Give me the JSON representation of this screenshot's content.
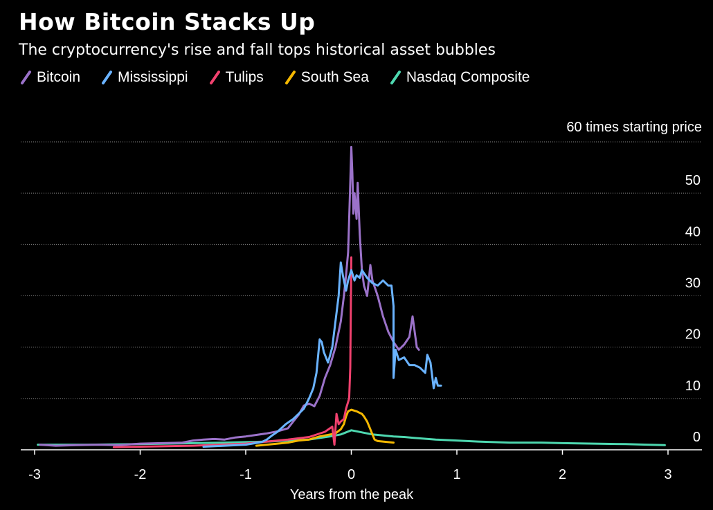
{
  "header": {
    "title": "How Bitcoin Stacks Up",
    "subtitle": "The cryptocurrency's rise and fall tops historical asset bubbles"
  },
  "chart_data": {
    "type": "line",
    "title": "How Bitcoin Stacks Up",
    "subtitle": "The cryptocurrency's rise and fall tops historical asset bubbles",
    "xlabel": "Years from the peak",
    "ylabel": "60 times starting price",
    "xlim": [
      -3,
      3
    ],
    "ylim": [
      0,
      60
    ],
    "xticks": [
      -3,
      -2,
      -1,
      0,
      1,
      2,
      3
    ],
    "yticks": [
      0,
      10,
      20,
      30,
      40,
      50,
      60
    ],
    "ytick_labels": [
      "0",
      "10",
      "20",
      "30",
      "40",
      "50",
      ""
    ],
    "grid": "horizontal dotted",
    "legend_position": "top-left",
    "series": [
      {
        "name": "Bitcoin",
        "color": "#9b72c9",
        "points": [
          [
            -2.95,
            1.0
          ],
          [
            -2.8,
            0.8
          ],
          [
            -2.6,
            0.9
          ],
          [
            -2.4,
            1.0
          ],
          [
            -2.2,
            0.9
          ],
          [
            -2.0,
            1.2
          ],
          [
            -1.8,
            1.3
          ],
          [
            -1.6,
            1.4
          ],
          [
            -1.5,
            1.8
          ],
          [
            -1.4,
            2.0
          ],
          [
            -1.3,
            2.1
          ],
          [
            -1.2,
            2.0
          ],
          [
            -1.1,
            2.4
          ],
          [
            -1.0,
            2.6
          ],
          [
            -0.9,
            2.9
          ],
          [
            -0.8,
            3.2
          ],
          [
            -0.7,
            3.6
          ],
          [
            -0.6,
            4.2
          ],
          [
            -0.55,
            5.5
          ],
          [
            -0.5,
            6.8
          ],
          [
            -0.45,
            8.6
          ],
          [
            -0.4,
            9.0
          ],
          [
            -0.35,
            8.5
          ],
          [
            -0.3,
            10.5
          ],
          [
            -0.25,
            14.0
          ],
          [
            -0.2,
            16.5
          ],
          [
            -0.15,
            20.0
          ],
          [
            -0.1,
            25.0
          ],
          [
            -0.07,
            30.0
          ],
          [
            -0.05,
            34.0
          ],
          [
            -0.03,
            38.5
          ],
          [
            -0.02,
            45.0
          ],
          [
            -0.01,
            52.0
          ],
          [
            0.0,
            59.0
          ],
          [
            0.01,
            54.0
          ],
          [
            0.02,
            46.0
          ],
          [
            0.03,
            50.0
          ],
          [
            0.05,
            45.0
          ],
          [
            0.06,
            52.0
          ],
          [
            0.08,
            42.0
          ],
          [
            0.1,
            35.0
          ],
          [
            0.12,
            32.0
          ],
          [
            0.15,
            30.0
          ],
          [
            0.18,
            36.0
          ],
          [
            0.2,
            33.0
          ],
          [
            0.25,
            30.0
          ],
          [
            0.3,
            26.0
          ],
          [
            0.35,
            23.0
          ],
          [
            0.4,
            21.0
          ],
          [
            0.45,
            19.5
          ],
          [
            0.5,
            20.5
          ],
          [
            0.55,
            22.0
          ],
          [
            0.58,
            26.0
          ],
          [
            0.62,
            20.0
          ],
          [
            0.64,
            19.5
          ]
        ]
      },
      {
        "name": "Mississippi",
        "color": "#6ab3ff",
        "points": [
          [
            -1.4,
            0.6
          ],
          [
            -1.2,
            0.8
          ],
          [
            -1.0,
            1.0
          ],
          [
            -0.85,
            1.5
          ],
          [
            -0.8,
            2.0
          ],
          [
            -0.75,
            2.8
          ],
          [
            -0.7,
            3.5
          ],
          [
            -0.62,
            5.0
          ],
          [
            -0.55,
            6.0
          ],
          [
            -0.5,
            7.0
          ],
          [
            -0.45,
            8.0
          ],
          [
            -0.4,
            10.0
          ],
          [
            -0.36,
            12.0
          ],
          [
            -0.33,
            15.0
          ],
          [
            -0.3,
            21.5
          ],
          [
            -0.28,
            21.0
          ],
          [
            -0.26,
            19.0
          ],
          [
            -0.22,
            17.0
          ],
          [
            -0.18,
            20.0
          ],
          [
            -0.15,
            25.0
          ],
          [
            -0.12,
            30.0
          ],
          [
            -0.1,
            36.5
          ],
          [
            -0.08,
            34.0
          ],
          [
            -0.05,
            31.0
          ],
          [
            -0.03,
            33.0
          ],
          [
            0.0,
            35.0
          ],
          [
            0.03,
            33.0
          ],
          [
            0.05,
            34.0
          ],
          [
            0.08,
            33.5
          ],
          [
            0.1,
            35.0
          ],
          [
            0.15,
            33.5
          ],
          [
            0.2,
            32.5
          ],
          [
            0.25,
            32.0
          ],
          [
            0.3,
            33.0
          ],
          [
            0.35,
            32.0
          ],
          [
            0.38,
            32.0
          ],
          [
            0.4,
            28.0
          ],
          [
            0.4,
            14.0
          ],
          [
            0.42,
            19.5
          ],
          [
            0.45,
            17.5
          ],
          [
            0.5,
            18.0
          ],
          [
            0.55,
            16.5
          ],
          [
            0.6,
            16.5
          ],
          [
            0.65,
            16.0
          ],
          [
            0.7,
            15.0
          ],
          [
            0.72,
            18.5
          ],
          [
            0.75,
            17.0
          ],
          [
            0.78,
            12.0
          ],
          [
            0.8,
            14.0
          ],
          [
            0.82,
            12.5
          ],
          [
            0.85,
            12.5
          ]
        ]
      },
      {
        "name": "Tulips",
        "color": "#f1416e",
        "points": [
          [
            -2.25,
            0.5
          ],
          [
            -2.0,
            0.6
          ],
          [
            -1.5,
            0.8
          ],
          [
            -1.0,
            1.2
          ],
          [
            -0.8,
            1.6
          ],
          [
            -0.6,
            2.0
          ],
          [
            -0.4,
            2.5
          ],
          [
            -0.25,
            3.5
          ],
          [
            -0.18,
            4.5
          ],
          [
            -0.16,
            1.0
          ],
          [
            -0.14,
            7.0
          ],
          [
            -0.12,
            5.0
          ],
          [
            -0.1,
            5.5
          ],
          [
            -0.07,
            6.0
          ],
          [
            -0.05,
            8.0
          ],
          [
            -0.02,
            10.0
          ],
          [
            -0.01,
            16.0
          ],
          [
            0.0,
            37.5
          ]
        ]
      },
      {
        "name": "South Sea",
        "color": "#f5b800",
        "points": [
          [
            -0.9,
            0.8
          ],
          [
            -0.8,
            1.0
          ],
          [
            -0.7,
            1.2
          ],
          [
            -0.6,
            1.4
          ],
          [
            -0.5,
            1.8
          ],
          [
            -0.4,
            2.0
          ],
          [
            -0.3,
            2.6
          ],
          [
            -0.2,
            3.0
          ],
          [
            -0.15,
            3.2
          ],
          [
            -0.1,
            4.0
          ],
          [
            -0.07,
            5.0
          ],
          [
            -0.05,
            6.5
          ],
          [
            -0.03,
            7.5
          ],
          [
            0.0,
            7.8
          ],
          [
            0.05,
            7.5
          ],
          [
            0.1,
            7.0
          ],
          [
            0.12,
            6.5
          ],
          [
            0.15,
            5.5
          ],
          [
            0.18,
            4.0
          ],
          [
            0.2,
            3.0
          ],
          [
            0.22,
            2.0
          ],
          [
            0.25,
            1.7
          ],
          [
            0.3,
            1.6
          ],
          [
            0.35,
            1.5
          ],
          [
            0.4,
            1.4
          ]
        ]
      },
      {
        "name": "Nasdaq Composite",
        "color": "#4ed8b0",
        "points": [
          [
            -2.97,
            1.0
          ],
          [
            -2.5,
            1.0
          ],
          [
            -2.0,
            1.1
          ],
          [
            -1.5,
            1.3
          ],
          [
            -1.2,
            1.4
          ],
          [
            -1.0,
            1.5
          ],
          [
            -0.8,
            1.6
          ],
          [
            -0.6,
            1.8
          ],
          [
            -0.4,
            2.0
          ],
          [
            -0.3,
            2.3
          ],
          [
            -0.2,
            2.6
          ],
          [
            -0.1,
            3.0
          ],
          [
            0.0,
            3.8
          ],
          [
            0.1,
            3.4
          ],
          [
            0.2,
            3.0
          ],
          [
            0.3,
            2.8
          ],
          [
            0.4,
            2.6
          ],
          [
            0.5,
            2.5
          ],
          [
            0.6,
            2.3
          ],
          [
            0.8,
            2.0
          ],
          [
            1.0,
            1.8
          ],
          [
            1.2,
            1.6
          ],
          [
            1.5,
            1.4
          ],
          [
            1.8,
            1.4
          ],
          [
            2.0,
            1.3
          ],
          [
            2.3,
            1.2
          ],
          [
            2.6,
            1.1
          ],
          [
            2.8,
            1.0
          ],
          [
            2.97,
            0.9
          ]
        ]
      }
    ]
  }
}
